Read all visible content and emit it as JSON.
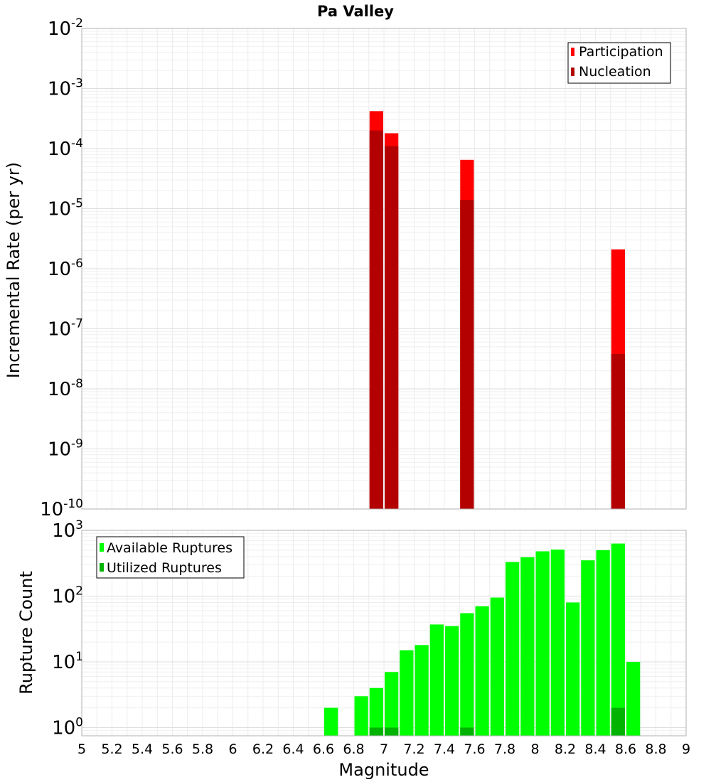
{
  "chart_data": [
    {
      "type": "bar",
      "title": "Pa Valley",
      "ylabel": "Incremental Rate (per yr)",
      "yscale": "log",
      "ylim": [
        1e-10,
        0.01
      ],
      "xlim": [
        5,
        9
      ],
      "bar_width": 0.1,
      "legend_position": "top-right",
      "series": [
        {
          "name": "Participation",
          "color": "#ff0000",
          "x": [
            6.95,
            7.05,
            7.55,
            8.55
          ],
          "values": [
            0.00042,
            0.00018,
            6.5e-05,
            2.1e-06
          ]
        },
        {
          "name": "Nucleation",
          "color": "#b30000",
          "x": [
            6.95,
            7.05,
            7.55,
            8.55
          ],
          "values": [
            0.0002,
            0.00011,
            1.4e-05,
            3.8e-08
          ]
        }
      ]
    },
    {
      "type": "bar",
      "xlabel": "Magnitude",
      "ylabel": "Rupture Count",
      "yscale": "log",
      "ylim": [
        0.75,
        1000
      ],
      "xlim": [
        5,
        9
      ],
      "bar_width": 0.1,
      "legend_position": "top-left",
      "xticks": [
        "5",
        "5.2",
        "5.4",
        "5.6",
        "5.8",
        "6",
        "6.2",
        "6.4",
        "6.6",
        "6.8",
        "7",
        "7.2",
        "7.4",
        "7.6",
        "7.8",
        "8",
        "8.2",
        "8.4",
        "8.6",
        "8.8",
        "9"
      ],
      "series": [
        {
          "name": "Available Ruptures",
          "color": "#00ff00",
          "x": [
            6.65,
            6.85,
            6.95,
            7.05,
            7.15,
            7.25,
            7.35,
            7.45,
            7.55,
            7.65,
            7.75,
            7.85,
            7.95,
            8.05,
            8.15,
            8.25,
            8.35,
            8.45,
            8.55,
            8.65
          ],
          "values": [
            2,
            3,
            4,
            7,
            15,
            18,
            37,
            35,
            55,
            70,
            95,
            330,
            390,
            480,
            510,
            80,
            350,
            500,
            630,
            10
          ]
        },
        {
          "name": "Utilized Ruptures",
          "color": "#00b300",
          "x": [
            6.95,
            7.05,
            7.55,
            8.55
          ],
          "values": [
            1,
            1,
            1,
            2
          ]
        }
      ]
    }
  ],
  "top_yticks": [
    {
      "base": "10",
      "exp": "-10"
    },
    {
      "base": "10",
      "exp": "-9"
    },
    {
      "base": "10",
      "exp": "-8"
    },
    {
      "base": "10",
      "exp": "-7"
    },
    {
      "base": "10",
      "exp": "-6"
    },
    {
      "base": "10",
      "exp": "-5"
    },
    {
      "base": "10",
      "exp": "-4"
    },
    {
      "base": "10",
      "exp": "-3"
    },
    {
      "base": "10",
      "exp": "-2"
    }
  ],
  "bottom_yticks": [
    {
      "base": "10",
      "exp": "0"
    },
    {
      "base": "10",
      "exp": "1"
    },
    {
      "base": "10",
      "exp": "2"
    },
    {
      "base": "10",
      "exp": "3"
    }
  ]
}
